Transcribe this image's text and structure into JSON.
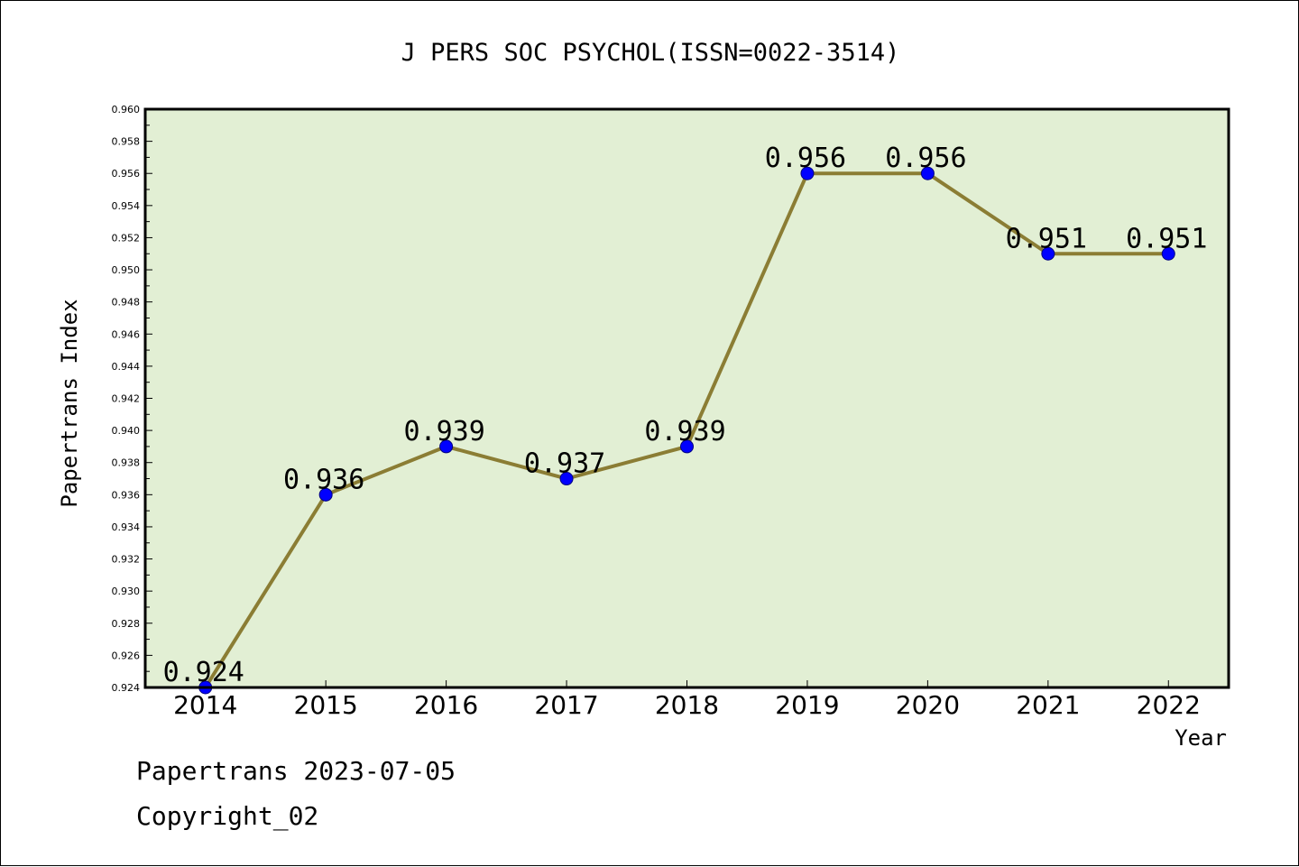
{
  "chart_data": {
    "type": "line",
    "title": "J PERS SOC PSYCHOL(ISSN=0022-3514)",
    "xlabel": "Year",
    "ylabel": "Papertrans Index",
    "categories": [
      "2014",
      "2015",
      "2016",
      "2017",
      "2018",
      "2019",
      "2020",
      "2021",
      "2022"
    ],
    "series": [
      {
        "values": [
          0.924,
          0.936,
          0.939,
          0.937,
          0.939,
          0.956,
          0.956,
          0.951,
          0.951
        ],
        "data_labels": [
          "0.924",
          "0.936",
          "0.939",
          "0.937",
          "0.939",
          "0.956",
          "0.956",
          "0.951",
          "0.951"
        ]
      }
    ],
    "ylim": [
      0.924,
      0.96
    ],
    "yticks": [
      "0.924",
      "0.926",
      "0.928",
      "0.930",
      "0.932",
      "0.934",
      "0.936",
      "0.938",
      "0.940",
      "0.942",
      "0.944",
      "0.946",
      "0.948",
      "0.950",
      "0.952",
      "0.954",
      "0.956",
      "0.958",
      "0.960"
    ],
    "grid": false,
    "colors": {
      "plot_background": "#E2EFD4",
      "line": "#8B7D34",
      "marker_fill": "#0000FF",
      "marker_stroke": "#000080",
      "frame": "#000000"
    }
  },
  "footer": {
    "source_line": "Papertrans 2023-07-05",
    "copyright_line": "Copyright_02"
  }
}
